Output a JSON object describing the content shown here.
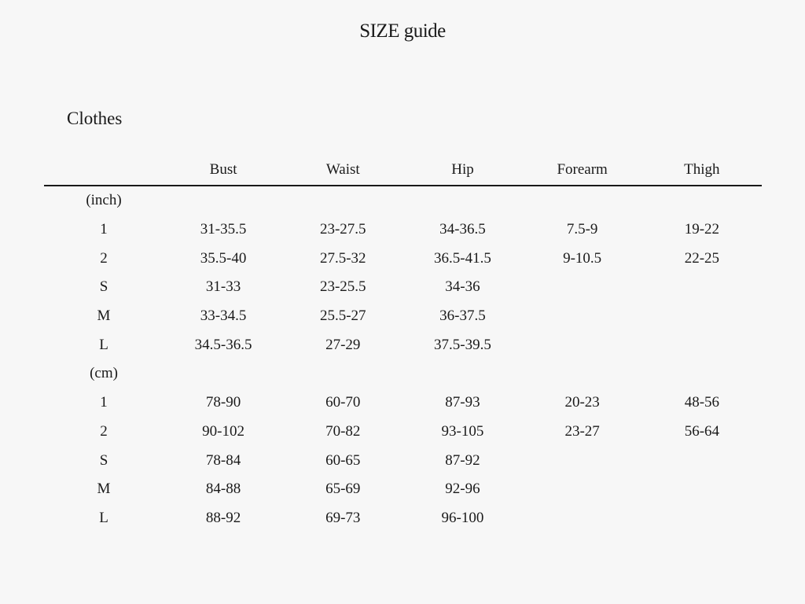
{
  "page_title": "SIZE guide",
  "section_title": "Clothes",
  "table": {
    "columns": [
      "",
      "Bust",
      "Waist",
      "Hip",
      "Forearm",
      "Thigh"
    ],
    "groups": [
      {
        "unit": "(inch)",
        "rows": [
          {
            "size": "1",
            "bust": "31-35.5",
            "waist": "23-27.5",
            "hip": "34-36.5",
            "forearm": "7.5-9",
            "thigh": "19-22"
          },
          {
            "size": "2",
            "bust": "35.5-40",
            "waist": "27.5-32",
            "hip": "36.5-41.5",
            "forearm": "9-10.5",
            "thigh": "22-25"
          },
          {
            "size": "S",
            "bust": "31-33",
            "waist": "23-25.5",
            "hip": "34-36",
            "forearm": "",
            "thigh": ""
          },
          {
            "size": "M",
            "bust": "33-34.5",
            "waist": "25.5-27",
            "hip": "36-37.5",
            "forearm": "",
            "thigh": ""
          },
          {
            "size": "L",
            "bust": "34.5-36.5",
            "waist": "27-29",
            "hip": "37.5-39.5",
            "forearm": "",
            "thigh": ""
          }
        ]
      },
      {
        "unit": "(cm)",
        "rows": [
          {
            "size": "1",
            "bust": "78-90",
            "waist": "60-70",
            "hip": "87-93",
            "forearm": "20-23",
            "thigh": "48-56"
          },
          {
            "size": "2",
            "bust": "90-102",
            "waist": "70-82",
            "hip": "93-105",
            "forearm": "23-27",
            "thigh": "56-64"
          },
          {
            "size": "S",
            "bust": "78-84",
            "waist": "60-65",
            "hip": "87-92",
            "forearm": "",
            "thigh": ""
          },
          {
            "size": "M",
            "bust": "84-88",
            "waist": "65-69",
            "hip": "92-96",
            "forearm": "",
            "thigh": ""
          },
          {
            "size": "L",
            "bust": "88-92",
            "waist": "69-73",
            "hip": "96-100",
            "forearm": "",
            "thigh": ""
          }
        ]
      }
    ]
  }
}
